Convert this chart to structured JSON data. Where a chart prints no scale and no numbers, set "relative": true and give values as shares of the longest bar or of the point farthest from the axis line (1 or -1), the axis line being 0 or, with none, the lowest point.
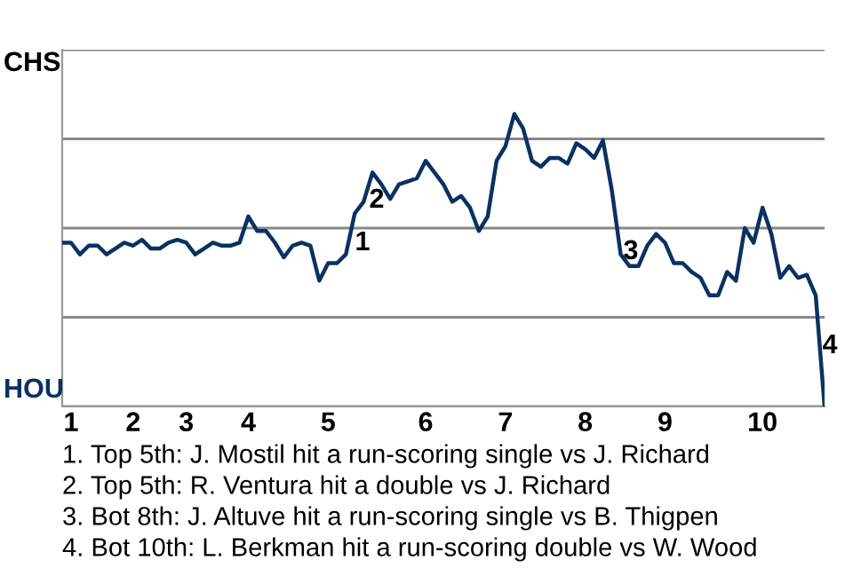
{
  "chart_data": {
    "type": "line",
    "relative": true,
    "categories": [
      null,
      "1",
      null,
      null,
      null,
      null,
      null,
      null,
      "2",
      null,
      null,
      null,
      null,
      null,
      "3",
      null,
      null,
      null,
      null,
      null,
      null,
      "4",
      null,
      null,
      null,
      null,
      null,
      null,
      null,
      null,
      "5",
      null,
      null,
      null,
      null,
      null,
      null,
      null,
      null,
      null,
      null,
      "6",
      null,
      null,
      null,
      null,
      null,
      null,
      null,
      null,
      "7",
      null,
      null,
      null,
      null,
      null,
      null,
      null,
      null,
      "8",
      null,
      null,
      null,
      null,
      null,
      null,
      null,
      null,
      "9",
      null,
      null,
      null,
      null,
      null,
      null,
      null,
      null,
      null,
      null,
      "10",
      null,
      null,
      null,
      null,
      null,
      null,
      null
    ],
    "series": [
      {
        "color": "#0a3161",
        "values": [
          0.56,
          0.56,
          0.52,
          0.55,
          0.55,
          0.52,
          0.54,
          0.56,
          0.55,
          0.57,
          0.54,
          0.54,
          0.56,
          0.57,
          0.56,
          0.52,
          0.54,
          0.56,
          0.55,
          0.55,
          0.56,
          0.65,
          0.6,
          0.6,
          0.56,
          0.51,
          0.55,
          0.56,
          0.55,
          0.43,
          0.49,
          0.49,
          0.52,
          0.66,
          0.7,
          0.8,
          0.76,
          0.71,
          0.76,
          0.77,
          0.78,
          0.84,
          0.8,
          0.76,
          0.7,
          0.72,
          0.68,
          0.6,
          0.65,
          0.84,
          0.89,
          1,
          0.95,
          0.84,
          0.82,
          0.85,
          0.85,
          0.83,
          0.9,
          0.88,
          0.85,
          0.91,
          0.74,
          0.52,
          0.48,
          0.48,
          0.55,
          0.59,
          0.56,
          0.49,
          0.49,
          0.46,
          0.44,
          0.38,
          0.38,
          0.46,
          0.43,
          0.61,
          0.56,
          0.68,
          0.59,
          0.44,
          0.48,
          0.44,
          0.45,
          0.38,
          0
        ]
      }
    ],
    "grid": "y",
    "marker": "none",
    "line_style": "solid",
    "annotations": [
      "CHS",
      "HOU",
      "1",
      "2",
      "3",
      "4",
      "1. Top 5th: J. Mostil hit a run-scoring single vs J. Richard",
      "2. Top 5th: R. Ventura hit a double vs J. Richard",
      "3. Bot 8th: J. Altuve hit a run-scoring single vs B. Thigpen",
      "4. Bot 10th: L. Berkman hit a run-scoring double vs W. Wood"
    ]
  }
}
